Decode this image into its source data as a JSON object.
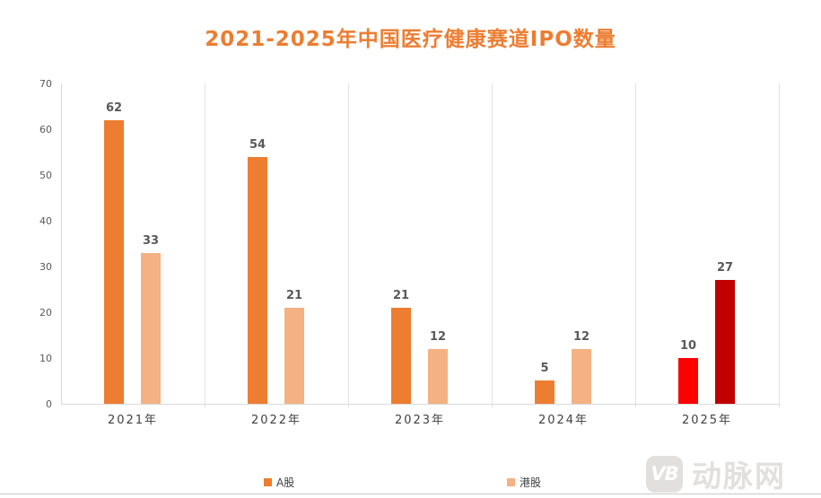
{
  "title": "2021-2025年中国医疗健康赛道IPO数量",
  "title_color": "#ED7D31",
  "chart_data": {
    "type": "bar",
    "title": "2021-2025年中国医疗健康赛道IPO数量",
    "categories": [
      "2021年",
      "2022年",
      "2023年",
      "2024年",
      "2025年"
    ],
    "series": [
      {
        "name": "A股",
        "values": [
          62,
          54,
          21,
          5,
          10
        ],
        "bar_colors": [
          "#ED7D31",
          "#ED7D31",
          "#ED7D31",
          "#ED7D31",
          "#FE0000"
        ]
      },
      {
        "name": "港股",
        "values": [
          33,
          21,
          12,
          12,
          27
        ],
        "bar_colors": [
          "#F4B183",
          "#F4B183",
          "#F4B183",
          "#F4B183",
          "#C00000"
        ]
      }
    ],
    "ylim": [
      0,
      70
    ],
    "yticks": [
      0,
      10,
      20,
      30,
      40,
      50,
      60,
      70
    ],
    "xlabel": "",
    "ylabel": "",
    "grid": "vertical category separators only",
    "data_labels": true,
    "legend_position": "bottom"
  },
  "legend": {
    "items": [
      {
        "label": "A股",
        "color": "#ED7D31"
      },
      {
        "label": "港股",
        "color": "#F4B183"
      }
    ]
  },
  "watermark": {
    "logo_text": "VB",
    "brand": "动脉网",
    "color": "#e2e0de"
  }
}
